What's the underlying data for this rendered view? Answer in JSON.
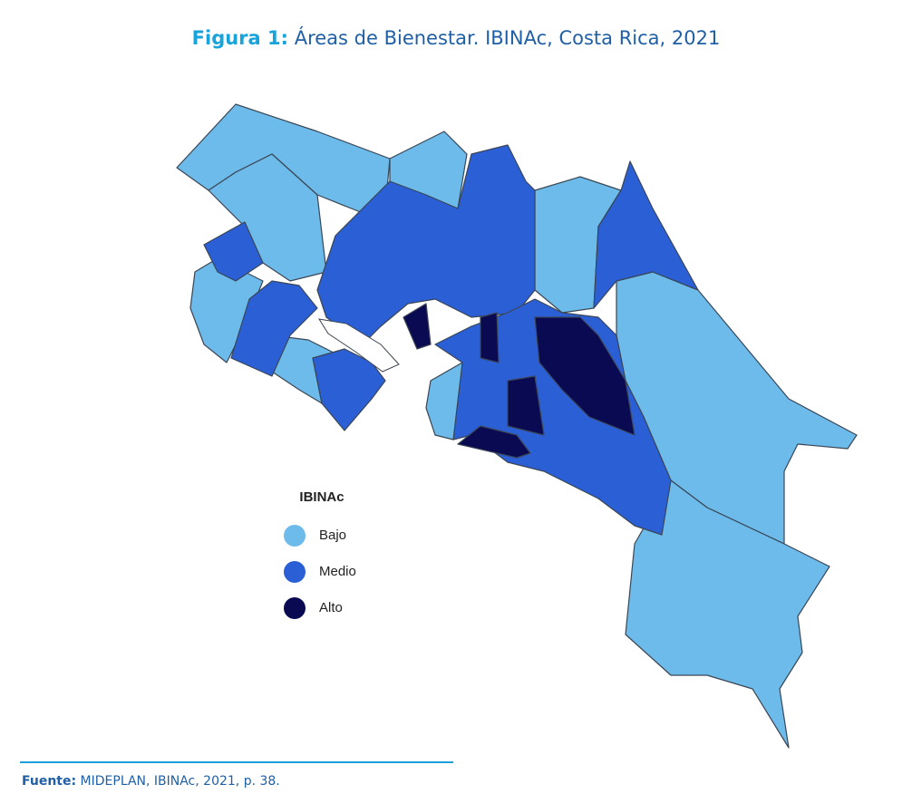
{
  "title": {
    "label": "Figura 1:",
    "text": "Áreas de Bienestar. IBINAc, Costa Rica, 2021"
  },
  "legend": {
    "title": "IBINAc",
    "items": [
      {
        "label": "Bajo",
        "color": "#6cbbea"
      },
      {
        "label": "Medio",
        "color": "#2b5fd6"
      },
      {
        "label": "Alto",
        "color": "#0a0a52"
      }
    ]
  },
  "source": {
    "label": "Fuente:",
    "text": "MIDEPLAN, IBINAc, 2021, p. 38."
  }
}
